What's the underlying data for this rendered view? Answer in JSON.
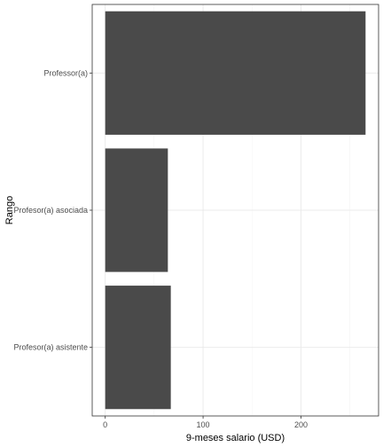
{
  "chart_data": {
    "type": "bar",
    "orientation": "horizontal",
    "categories": [
      "Professor(a)",
      "Profesor(a) asociada",
      "Profesor(a) asistente"
    ],
    "values": [
      266,
      64,
      67
    ],
    "xlabel": "9-meses salario (USD)",
    "ylabel": "Rango",
    "xlim": [
      -13.3,
      279.3
    ],
    "xticks": [
      0,
      100,
      200
    ],
    "grid": true,
    "legend": "none",
    "colors": {
      "bar": "#4a4a4a",
      "panel_border": "#333333",
      "grid_major": "#ebebeb",
      "grid_minor": "#f5f5f5",
      "tick_text": "#4d4d4d"
    }
  }
}
